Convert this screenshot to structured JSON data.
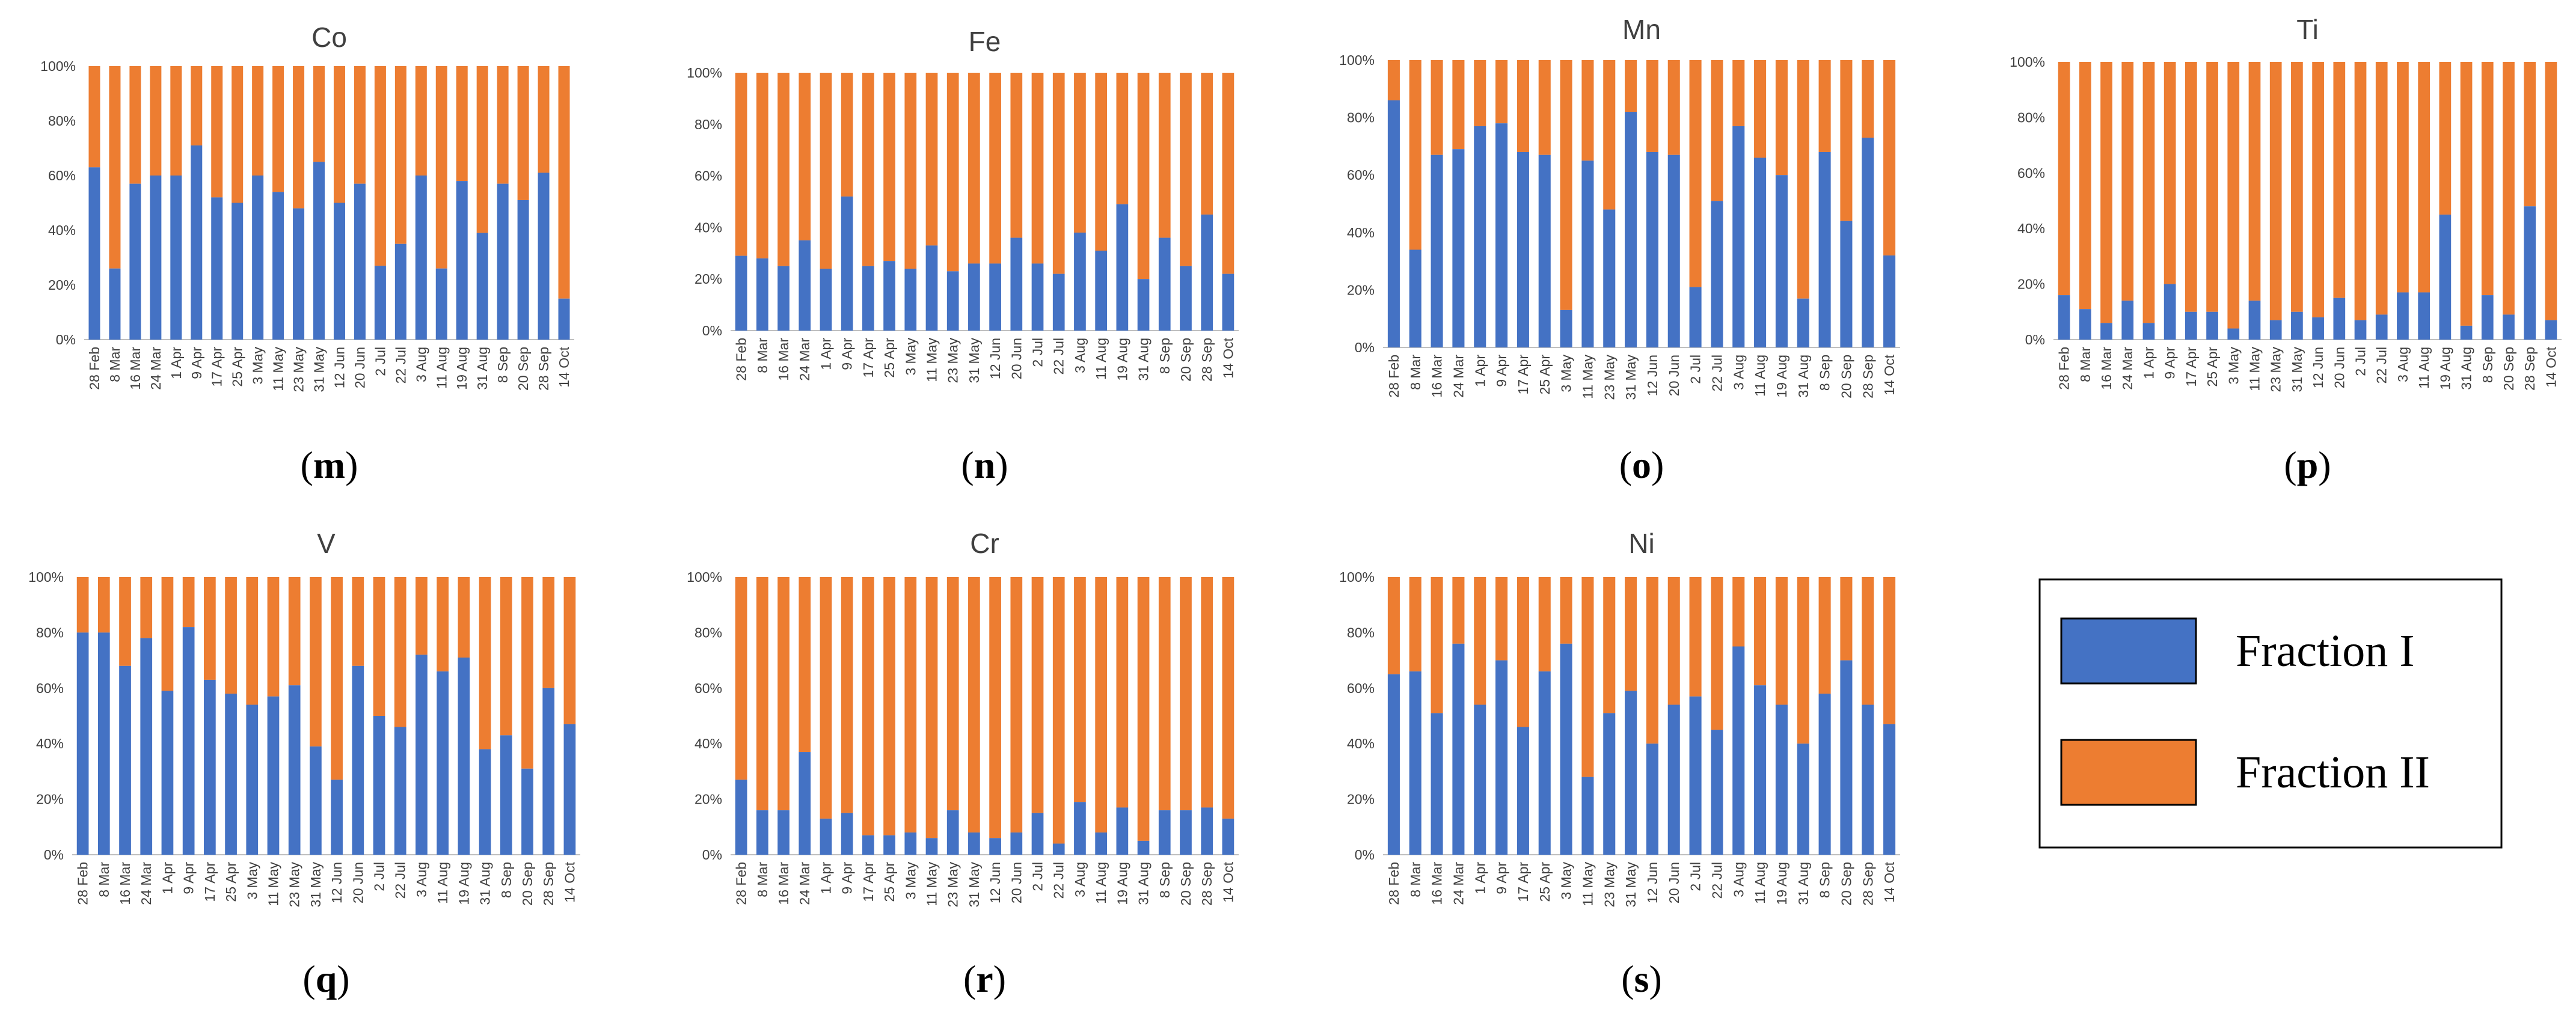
{
  "colors": {
    "fraction_i": "#4472C4",
    "fraction_ii": "#ED7D31",
    "axis": "#BFBFBF"
  },
  "legend": {
    "items": [
      {
        "label": "Fraction I",
        "color": "#4472C4"
      },
      {
        "label": "Fraction II",
        "color": "#ED7D31"
      }
    ]
  },
  "chart_data": [
    {
      "type": "stacked-bar-100",
      "title": "Co",
      "panel_label": "m",
      "y_ticks": [
        "0%",
        "20%",
        "40%",
        "60%",
        "80%",
        "100%"
      ],
      "ylim": [
        0,
        100
      ],
      "categories": [
        "28 Feb",
        "8 Mar",
        "16 Mar",
        "24 Mar",
        "1 Apr",
        "9 Apr",
        "17 Apr",
        "25 Apr",
        "3 May",
        "11 May",
        "23 May",
        "31 May",
        "12 Jun",
        "20 Jun",
        "2 Jul",
        "22 Jul",
        "3 Aug",
        "11 Aug",
        "19 Aug",
        "31 Aug",
        "8 Sep",
        "20 Sep",
        "28 Sep",
        "14 Oct"
      ],
      "series": [
        {
          "name": "Fraction I",
          "values": [
            63,
            26,
            57,
            60,
            60,
            71,
            52,
            50,
            60,
            54,
            48,
            65,
            50,
            57,
            27,
            35,
            60,
            26,
            58,
            39,
            57,
            51,
            61,
            15
          ]
        },
        {
          "name": "Fraction II",
          "values": [
            37,
            74,
            43,
            40,
            40,
            29,
            48,
            50,
            40,
            46,
            52,
            35,
            50,
            43,
            73,
            65,
            40,
            74,
            42,
            61,
            43,
            49,
            39,
            85
          ]
        }
      ]
    },
    {
      "type": "stacked-bar-100",
      "title": "Fe",
      "panel_label": "n",
      "y_ticks": [
        "0%",
        "20%",
        "40%",
        "60%",
        "80%",
        "100%"
      ],
      "ylim": [
        0,
        100
      ],
      "categories": [
        "28 Feb",
        "8 Mar",
        "16 Mar",
        "24 Mar",
        "1 Apr",
        "9 Apr",
        "17 Apr",
        "25 Apr",
        "3 May",
        "11 May",
        "23 May",
        "31 May",
        "12 Jun",
        "20 Jun",
        "2 Jul",
        "22 Jul",
        "3 Aug",
        "11 Aug",
        "19 Aug",
        "31 Aug",
        "8 Sep",
        "20 Sep",
        "28 Sep",
        "14 Oct"
      ],
      "series": [
        {
          "name": "Fraction I",
          "values": [
            29,
            28,
            25,
            35,
            24,
            52,
            25,
            27,
            24,
            33,
            23,
            26,
            26,
            36,
            26,
            22,
            38,
            31,
            49,
            20,
            36,
            25,
            45,
            22
          ]
        },
        {
          "name": "Fraction II",
          "values": [
            71,
            72,
            75,
            65,
            76,
            48,
            75,
            73,
            76,
            67,
            77,
            74,
            74,
            64,
            74,
            78,
            62,
            69,
            51,
            80,
            64,
            75,
            55,
            78
          ]
        }
      ]
    },
    {
      "type": "stacked-bar-100",
      "title": "Mn",
      "panel_label": "o",
      "y_ticks": [
        "0%",
        "20%",
        "40%",
        "60%",
        "80%",
        "100%"
      ],
      "ylim": [
        0,
        100
      ],
      "categories": [
        "28 Feb",
        "8 Mar",
        "16 Mar",
        "24 Mar",
        "1 Apr",
        "9 Apr",
        "17 Apr",
        "25 Apr",
        "3 May",
        "11 May",
        "23 May",
        "31 May",
        "12 Jun",
        "20 Jun",
        "2 Jul",
        "22 Jul",
        "3 Aug",
        "11 Aug",
        "19 Aug",
        "31 Aug",
        "8 Sep",
        "20 Sep",
        "28 Sep",
        "14 Oct"
      ],
      "series": [
        {
          "name": "Fraction I",
          "values": [
            86,
            34,
            67,
            69,
            77,
            78,
            68,
            67,
            13,
            65,
            48,
            82,
            68,
            67,
            21,
            51,
            77,
            66,
            60,
            17,
            68,
            44,
            73,
            32
          ]
        },
        {
          "name": "Fraction II",
          "values": [
            14,
            66,
            33,
            31,
            23,
            22,
            32,
            33,
            87,
            35,
            52,
            18,
            32,
            33,
            79,
            49,
            23,
            34,
            40,
            83,
            32,
            56,
            27,
            68
          ]
        }
      ]
    },
    {
      "type": "stacked-bar-100",
      "title": "Ti",
      "panel_label": "p",
      "y_ticks": [
        "0%",
        "20%",
        "40%",
        "60%",
        "80%",
        "100%"
      ],
      "ylim": [
        0,
        100
      ],
      "categories": [
        "28 Feb",
        "8 Mar",
        "16 Mar",
        "24 Mar",
        "1 Apr",
        "9 Apr",
        "17 Apr",
        "25 Apr",
        "3 May",
        "11 May",
        "23 May",
        "31 May",
        "12 Jun",
        "20 Jun",
        "2 Jul",
        "22 Jul",
        "3 Aug",
        "11 Aug",
        "19 Aug",
        "31 Aug",
        "8 Sep",
        "20 Sep",
        "28 Sep",
        "14 Oct"
      ],
      "series": [
        {
          "name": "Fraction I",
          "values": [
            16,
            11,
            6,
            14,
            6,
            20,
            10,
            10,
            4,
            14,
            7,
            10,
            8,
            15,
            7,
            9,
            17,
            17,
            45,
            5,
            16,
            9,
            48,
            7
          ]
        },
        {
          "name": "Fraction II",
          "values": [
            84,
            89,
            94,
            86,
            94,
            80,
            90,
            90,
            96,
            86,
            93,
            90,
            92,
            85,
            93,
            91,
            83,
            83,
            55,
            95,
            84,
            91,
            52,
            93
          ]
        }
      ]
    },
    {
      "type": "stacked-bar-100",
      "title": "V",
      "panel_label": "q",
      "y_ticks": [
        "0%",
        "20%",
        "40%",
        "60%",
        "80%",
        "100%"
      ],
      "ylim": [
        0,
        100
      ],
      "categories": [
        "28 Feb",
        "8 Mar",
        "16 Mar",
        "24 Mar",
        "1 Apr",
        "9 Apr",
        "17 Apr",
        "25 Apr",
        "3 May",
        "11 May",
        "23 May",
        "31 May",
        "12 Jun",
        "20 Jun",
        "2 Jul",
        "22 Jul",
        "3 Aug",
        "11 Aug",
        "19 Aug",
        "31 Aug",
        "8 Sep",
        "20 Sep",
        "28 Sep",
        "14 Oct"
      ],
      "series": [
        {
          "name": "Fraction I",
          "values": [
            80,
            80,
            68,
            78,
            59,
            82,
            63,
            58,
            54,
            57,
            61,
            39,
            27,
            68,
            50,
            46,
            72,
            66,
            71,
            38,
            43,
            31,
            60,
            47
          ]
        },
        {
          "name": "Fraction II",
          "values": [
            20,
            20,
            32,
            22,
            41,
            18,
            37,
            42,
            46,
            43,
            39,
            61,
            73,
            32,
            50,
            54,
            28,
            34,
            29,
            62,
            57,
            69,
            40,
            53
          ]
        }
      ]
    },
    {
      "type": "stacked-bar-100",
      "title": "Cr",
      "panel_label": "r",
      "y_ticks": [
        "0%",
        "20%",
        "40%",
        "60%",
        "80%",
        "100%"
      ],
      "ylim": [
        0,
        100
      ],
      "categories": [
        "28 Feb",
        "8 Mar",
        "16 Mar",
        "24 Mar",
        "1 Apr",
        "9 Apr",
        "17 Apr",
        "25 Apr",
        "3 May",
        "11 May",
        "23 May",
        "31 May",
        "12 Jun",
        "20 Jun",
        "2 Jul",
        "22 Jul",
        "3 Aug",
        "11 Aug",
        "19 Aug",
        "31 Aug",
        "8 Sep",
        "20 Sep",
        "28 Sep",
        "14 Oct"
      ],
      "series": [
        {
          "name": "Fraction I",
          "values": [
            27,
            16,
            16,
            37,
            13,
            15,
            7,
            7,
            8,
            6,
            16,
            8,
            6,
            8,
            15,
            4,
            19,
            8,
            17,
            5,
            16,
            16,
            17,
            13
          ]
        },
        {
          "name": "Fraction II",
          "values": [
            73,
            84,
            84,
            63,
            87,
            85,
            93,
            93,
            92,
            94,
            84,
            92,
            94,
            92,
            85,
            96,
            81,
            92,
            83,
            95,
            84,
            84,
            83,
            87
          ]
        }
      ]
    },
    {
      "type": "stacked-bar-100",
      "title": "Ni",
      "panel_label": "s",
      "y_ticks": [
        "0%",
        "20%",
        "40%",
        "60%",
        "80%",
        "100%"
      ],
      "ylim": [
        0,
        100
      ],
      "categories": [
        "28 Feb",
        "8 Mar",
        "16 Mar",
        "24 Mar",
        "1 Apr",
        "9 Apr",
        "17 Apr",
        "25 Apr",
        "3 May",
        "11 May",
        "23 May",
        "31 May",
        "12 Jun",
        "20 Jun",
        "2 Jul",
        "22 Jul",
        "3 Aug",
        "11 Aug",
        "19 Aug",
        "31 Aug",
        "8 Sep",
        "20 Sep",
        "28 Sep",
        "14 Oct"
      ],
      "series": [
        {
          "name": "Fraction I",
          "values": [
            65,
            66,
            51,
            76,
            54,
            70,
            46,
            66,
            76,
            28,
            51,
            59,
            40,
            54,
            57,
            45,
            75,
            61,
            54,
            40,
            58,
            70,
            54,
            47
          ]
        },
        {
          "name": "Fraction II",
          "values": [
            35,
            34,
            49,
            24,
            46,
            30,
            54,
            34,
            24,
            72,
            49,
            41,
            60,
            46,
            43,
            55,
            25,
            39,
            46,
            60,
            42,
            30,
            46,
            53
          ]
        }
      ]
    }
  ]
}
